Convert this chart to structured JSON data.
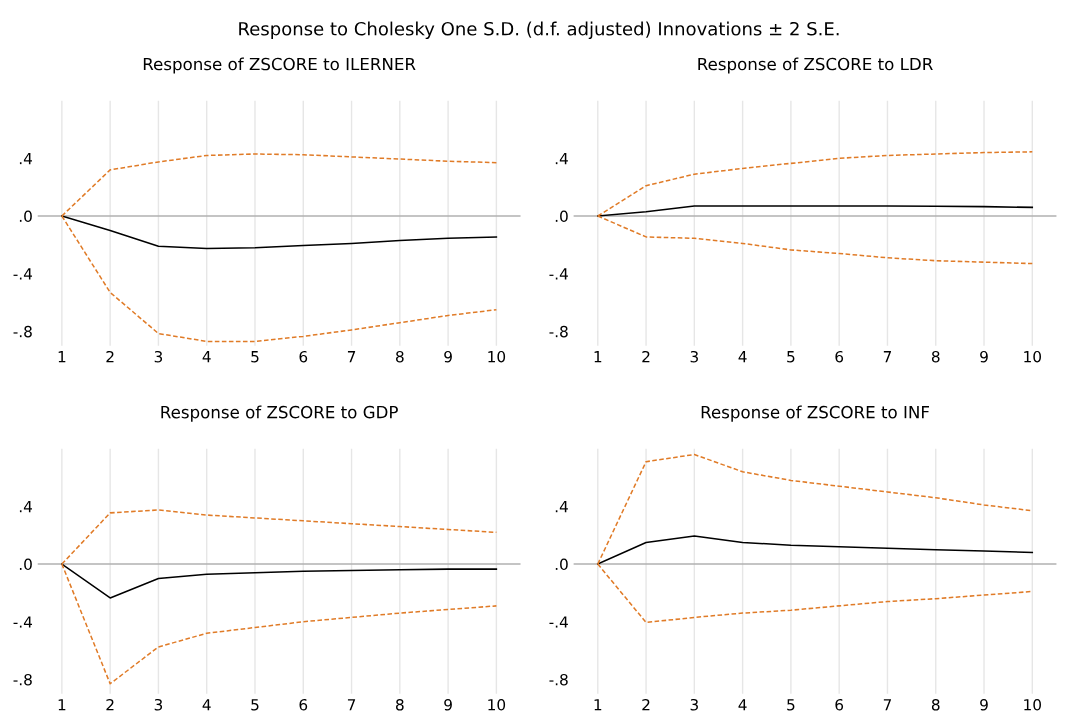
{
  "chart_data": [
    {
      "type": "line",
      "title": "Response of ZSCORE to ILERNER",
      "annotations": [
        "Response to Cholesky One S.D. (d.f. adjusted) Innovations ± 2 S.E."
      ],
      "x": [
        1,
        2,
        3,
        4,
        5,
        6,
        7,
        8,
        9,
        10
      ],
      "xlim": [
        0.5,
        10.5
      ],
      "xticks": [
        1,
        2,
        3,
        4,
        5,
        6,
        7,
        8,
        9,
        10
      ],
      "ylim": [
        -0.9,
        0.8
      ],
      "yticks": [
        {
          "value": 0.4,
          "label": ".4"
        },
        {
          "value": 0,
          "label": ".0"
        },
        {
          "value": -0.4,
          "label": "-.4"
        },
        {
          "value": -0.8,
          "label": "-.8"
        }
      ],
      "grid": "x",
      "ref_lines": [
        {
          "axis": "y",
          "value": 0,
          "color": "#b0b0b0"
        }
      ],
      "series": [
        {
          "color": "#000000",
          "line_style": "solid",
          "values": [
            0,
            -0.1,
            -0.21,
            -0.225,
            -0.22,
            -0.205,
            -0.19,
            -0.17,
            -0.155,
            -0.145
          ]
        },
        {
          "color": "#e07b27",
          "line_style": "dashed",
          "values": [
            0,
            0.32,
            0.375,
            0.42,
            0.43,
            0.425,
            0.41,
            0.395,
            0.38,
            0.37
          ]
        },
        {
          "color": "#e07b27",
          "line_style": "dashed",
          "values": [
            0,
            -0.53,
            -0.815,
            -0.87,
            -0.87,
            -0.835,
            -0.79,
            -0.74,
            -0.69,
            -0.65
          ]
        }
      ]
    },
    {
      "type": "line",
      "title": "Response of ZSCORE to LDR",
      "x": [
        1,
        2,
        3,
        4,
        5,
        6,
        7,
        8,
        9,
        10
      ],
      "xlim": [
        0.5,
        10.5
      ],
      "xticks": [
        1,
        2,
        3,
        4,
        5,
        6,
        7,
        8,
        9,
        10
      ],
      "ylim": [
        -0.9,
        0.8
      ],
      "yticks": [
        {
          "value": 0.4,
          "label": ".4"
        },
        {
          "value": 0,
          "label": ".0"
        },
        {
          "value": -0.4,
          "label": "-.4"
        },
        {
          "value": -0.8,
          "label": "-.8"
        }
      ],
      "grid": "x",
      "ref_lines": [
        {
          "axis": "y",
          "value": 0,
          "color": "#b0b0b0"
        }
      ],
      "series": [
        {
          "color": "#000000",
          "line_style": "solid",
          "values": [
            0,
            0.03,
            0.07,
            0.07,
            0.07,
            0.07,
            0.07,
            0.068,
            0.065,
            0.06
          ]
        },
        {
          "color": "#e07b27",
          "line_style": "dashed",
          "values": [
            0,
            0.21,
            0.29,
            0.33,
            0.365,
            0.4,
            0.42,
            0.43,
            0.44,
            0.445
          ]
        },
        {
          "color": "#e07b27",
          "line_style": "dashed",
          "values": [
            0,
            -0.145,
            -0.155,
            -0.19,
            -0.235,
            -0.26,
            -0.29,
            -0.31,
            -0.32,
            -0.33
          ]
        }
      ]
    },
    {
      "type": "line",
      "title": "Response of ZSCORE to GDP",
      "x": [
        1,
        2,
        3,
        4,
        5,
        6,
        7,
        8,
        9,
        10
      ],
      "xlim": [
        0.5,
        10.5
      ],
      "xticks": [
        1,
        2,
        3,
        4,
        5,
        6,
        7,
        8,
        9,
        10
      ],
      "ylim": [
        -0.9,
        0.8
      ],
      "yticks": [
        {
          "value": 0.4,
          "label": ".4"
        },
        {
          "value": 0,
          "label": ".0"
        },
        {
          "value": -0.4,
          "label": "-.4"
        },
        {
          "value": -0.8,
          "label": "-.8"
        }
      ],
      "grid": "x",
      "ref_lines": [
        {
          "axis": "y",
          "value": 0,
          "color": "#b0b0b0"
        }
      ],
      "series": [
        {
          "color": "#000000",
          "line_style": "solid",
          "values": [
            0,
            -0.235,
            -0.1,
            -0.07,
            -0.06,
            -0.05,
            -0.045,
            -0.04,
            -0.035,
            -0.035
          ]
        },
        {
          "color": "#e07b27",
          "line_style": "dashed",
          "values": [
            0,
            0.355,
            0.375,
            0.34,
            0.32,
            0.3,
            0.28,
            0.26,
            0.24,
            0.22
          ]
        },
        {
          "color": "#e07b27",
          "line_style": "dashed",
          "values": [
            0,
            -0.83,
            -0.575,
            -0.48,
            -0.44,
            -0.4,
            -0.37,
            -0.34,
            -0.315,
            -0.29
          ]
        }
      ]
    },
    {
      "type": "line",
      "title": "Response of ZSCORE to INF",
      "x": [
        1,
        2,
        3,
        4,
        5,
        6,
        7,
        8,
        9,
        10
      ],
      "xlim": [
        0.5,
        10.5
      ],
      "xticks": [
        1,
        2,
        3,
        4,
        5,
        6,
        7,
        8,
        9,
        10
      ],
      "ylim": [
        -0.9,
        0.8
      ],
      "yticks": [
        {
          "value": 0.4,
          "label": ".4"
        },
        {
          "value": 0,
          "label": ".0"
        },
        {
          "value": -0.4,
          "label": "-.4"
        },
        {
          "value": -0.8,
          "label": "-.8"
        }
      ],
      "grid": "x",
      "ref_lines": [
        {
          "axis": "y",
          "value": 0,
          "color": "#b0b0b0"
        }
      ],
      "series": [
        {
          "color": "#000000",
          "line_style": "solid",
          "values": [
            0,
            0.15,
            0.195,
            0.15,
            0.13,
            0.12,
            0.11,
            0.1,
            0.09,
            0.08
          ]
        },
        {
          "color": "#e07b27",
          "line_style": "dashed",
          "values": [
            0,
            0.71,
            0.76,
            0.64,
            0.58,
            0.54,
            0.5,
            0.46,
            0.41,
            0.37
          ]
        },
        {
          "color": "#e07b27",
          "line_style": "dashed",
          "values": [
            0,
            -0.405,
            -0.37,
            -0.34,
            -0.32,
            -0.29,
            -0.26,
            -0.24,
            -0.215,
            -0.19
          ]
        }
      ]
    }
  ]
}
